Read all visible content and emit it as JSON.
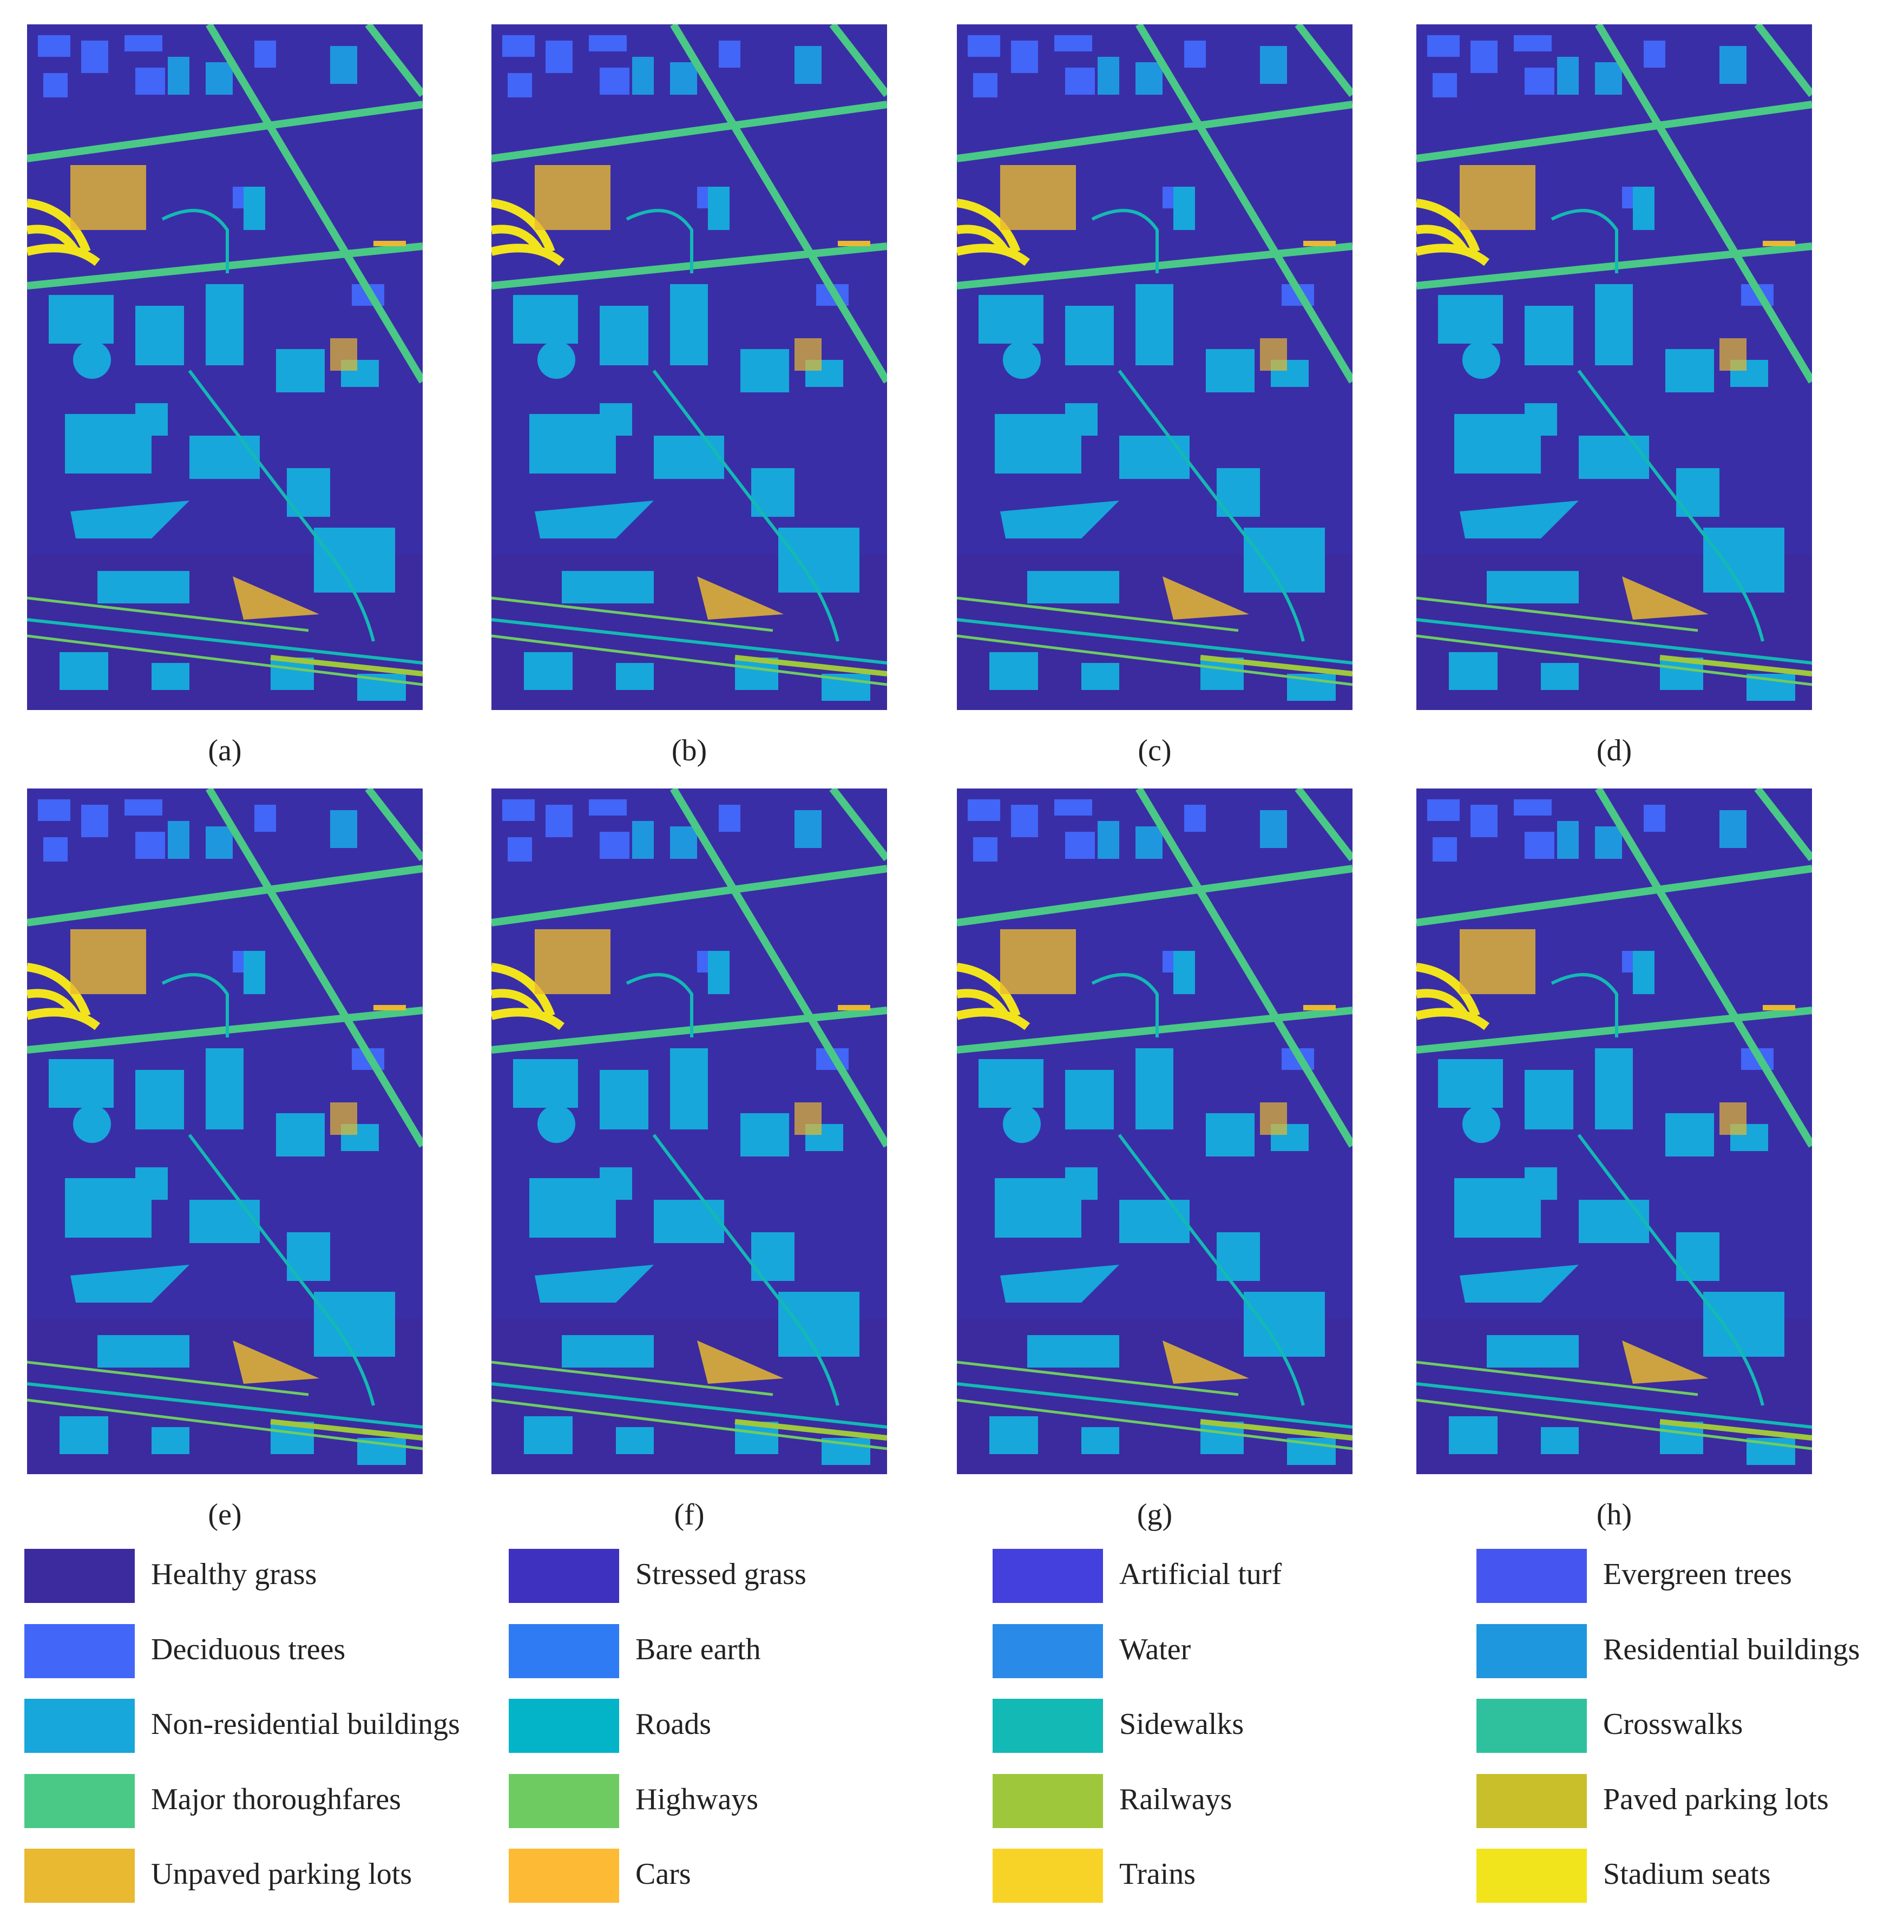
{
  "panels": [
    {
      "label": "(a)"
    },
    {
      "label": "(b)"
    },
    {
      "label": "(c)"
    },
    {
      "label": "(d)"
    },
    {
      "label": "(e)"
    },
    {
      "label": "(f)"
    },
    {
      "label": "(g)"
    },
    {
      "label": "(h)"
    }
  ],
  "legend": [
    {
      "name": "Healthy grass",
      "color": "#3b2b9e"
    },
    {
      "name": "Stressed grass",
      "color": "#3e31c0"
    },
    {
      "name": "Artificial turf",
      "color": "#4440dd"
    },
    {
      "name": "Evergreen trees",
      "color": "#4556f0"
    },
    {
      "name": "Deciduous trees",
      "color": "#4266f7"
    },
    {
      "name": "Bare earth",
      "color": "#2f7bf4"
    },
    {
      "name": "Water",
      "color": "#2a8ae8"
    },
    {
      "name": "Residential buildings",
      "color": "#1f97de"
    },
    {
      "name": "Non-residential buildings",
      "color": "#17a7da"
    },
    {
      "name": "Roads",
      "color": "#03b4c9"
    },
    {
      "name": "Sidewalks",
      "color": "#13b9b5"
    },
    {
      "name": "Crosswalks",
      "color": "#2fc19d"
    },
    {
      "name": "Major thoroughfares",
      "color": "#49c985"
    },
    {
      "name": "Highways",
      "color": "#6dcb62"
    },
    {
      "name": "Railways",
      "color": "#9fc73c"
    },
    {
      "name": "Paved parking lots",
      "color": "#c9bf2b"
    },
    {
      "name": "Unpaved parking lots",
      "color": "#e8b931"
    },
    {
      "name": "Cars",
      "color": "#fdbb35"
    },
    {
      "name": "Trains",
      "color": "#f8d327"
    },
    {
      "name": "Stadium seats",
      "color": "#f2e41c"
    }
  ]
}
